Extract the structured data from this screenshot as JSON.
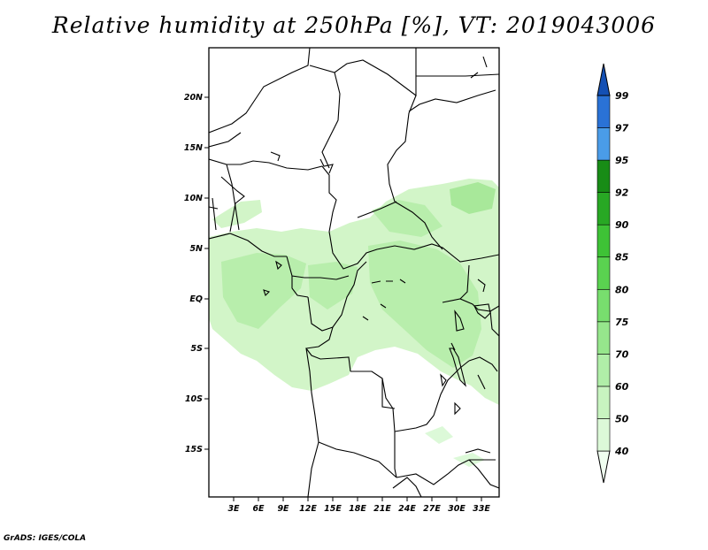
{
  "title": "Relative humidity at 250hPa [%], VT: 2019043006",
  "credit": "GrADS: IGES/COLA",
  "map": {
    "lat_ticks": [
      "20N",
      "15N",
      "10N",
      "5N",
      "EQ",
      "5S",
      "10S",
      "15S"
    ],
    "lon_ticks": [
      "3E",
      "6E",
      "9E",
      "12E",
      "15E",
      "18E",
      "21E",
      "24E",
      "27E",
      "30E",
      "33E"
    ]
  },
  "colorbar": {
    "levels": [
      "40",
      "50",
      "60",
      "70",
      "75",
      "80",
      "85",
      "90",
      "92",
      "95",
      "97",
      "99"
    ],
    "colors": [
      "#f0fff0",
      "#dcf9d8",
      "#c8f4c0",
      "#b0eea8",
      "#96e68c",
      "#78de6e",
      "#5ad250",
      "#3ec236",
      "#28a824",
      "#188c16",
      "#4a9ce8",
      "#2a72d6",
      "#1450b4"
    ]
  }
}
